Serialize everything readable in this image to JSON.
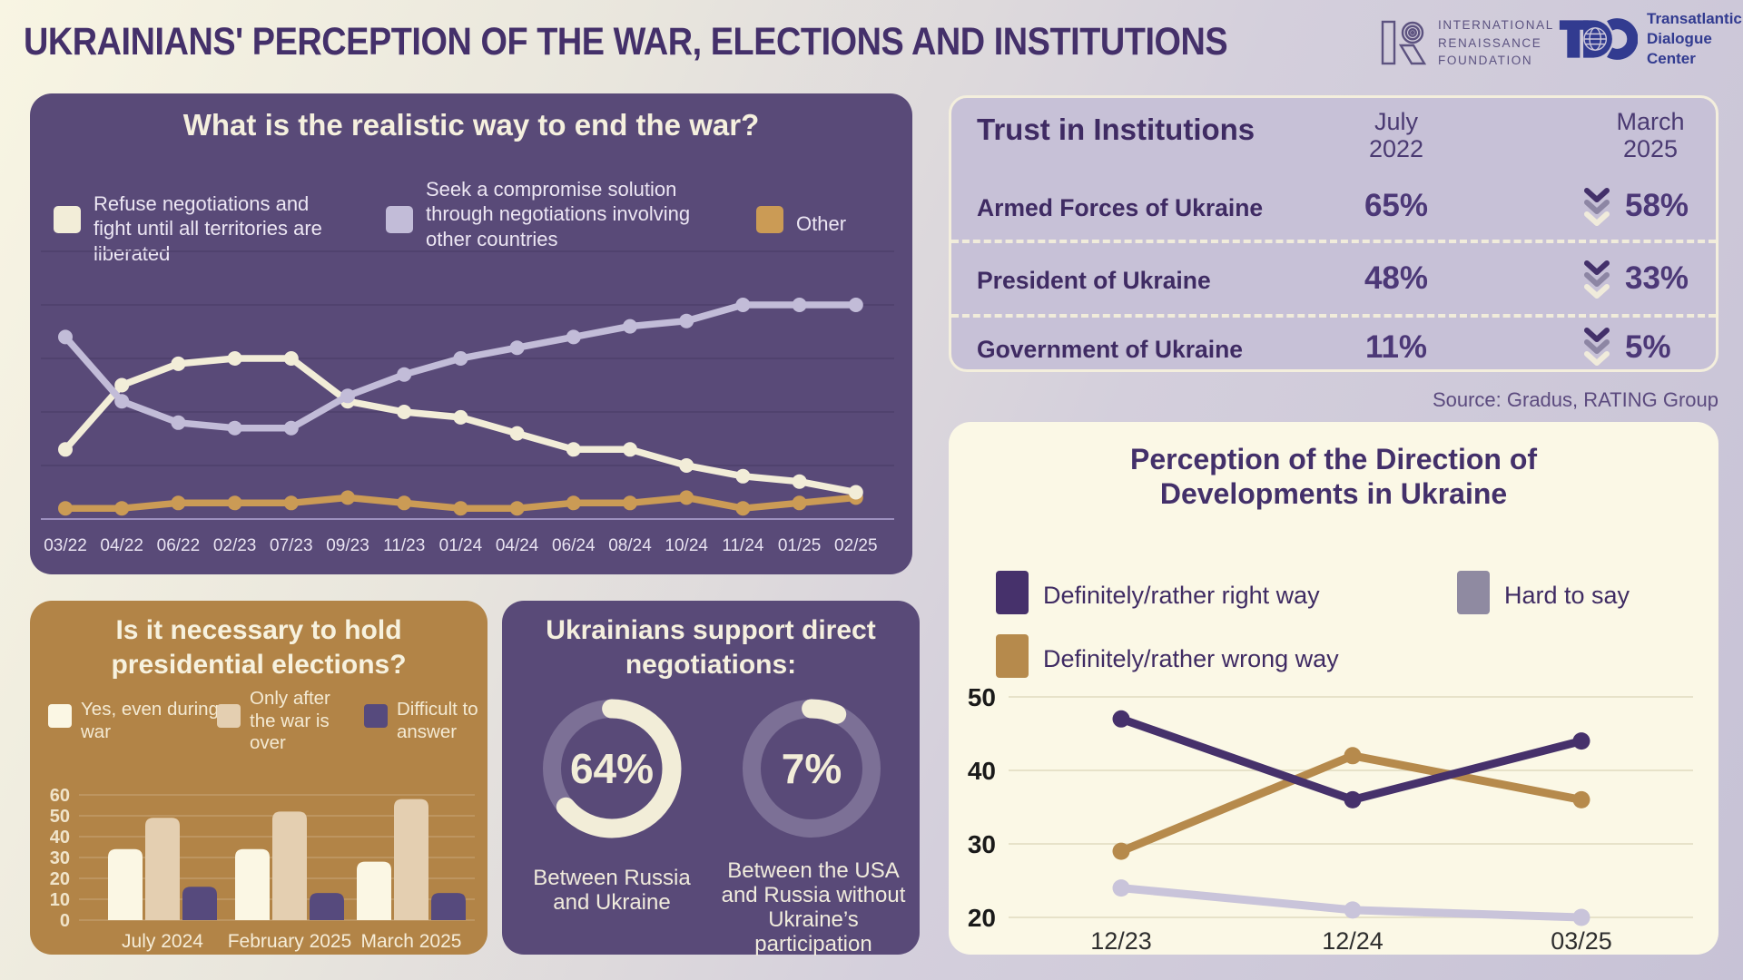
{
  "header": {
    "title": "UKRAINIANS' PERCEPTION OF THE WAR, ELECTIONS AND INSTITUTIONS",
    "irf_logo_lines": [
      "INTERNATIONAL",
      "RENAISSANCE",
      "FOUNDATION"
    ],
    "tdc_logo_lines": [
      "Transatlantic",
      "Dialogue",
      "Center"
    ]
  },
  "source_note": "Source: Gradus, RATING Group",
  "palette": {
    "purple_card": "#594a78",
    "tan_card": "#b28447",
    "cream_card": "#fbf8e6",
    "lavender_panel": "#c7c1d7",
    "heading_text": "#44306a",
    "cream_text": "#f5f0de",
    "logo_navy": "#323b90"
  },
  "chart_data": [
    {
      "id": "end_war",
      "type": "line",
      "title": "What is the realistic way to end the war?",
      "x": [
        "03/22",
        "04/22",
        "06/22",
        "02/23",
        "07/23",
        "09/23",
        "11/23",
        "01/24",
        "04/24",
        "06/24",
        "08/24",
        "10/24",
        "11/24",
        "01/25",
        "02/25"
      ],
      "series": [
        {
          "name": "Refuse negotiations and fight until all territories are liberated",
          "color": "#f2edd8",
          "values": [
            13,
            25,
            29,
            30,
            30,
            22,
            20,
            19,
            16,
            13,
            13,
            10,
            8,
            7,
            5
          ]
        },
        {
          "name": "Seek a compromise solution through negotiations involving other countries",
          "color": "#c2bcd8",
          "values": [
            34,
            22,
            18,
            17,
            17,
            23,
            27,
            30,
            32,
            34,
            36,
            37,
            40,
            40,
            40
          ]
        },
        {
          "name": "Other",
          "color": "#cb9b55",
          "values": [
            2,
            2,
            3,
            3,
            3,
            4,
            3,
            2,
            2,
            3,
            3,
            4,
            2,
            3,
            4
          ]
        }
      ],
      "ylim": [
        0,
        50
      ],
      "grid": true,
      "legend_position": "top"
    },
    {
      "id": "trust_in_institutions",
      "type": "table",
      "title": "Trust in Institutions",
      "col_headers": [
        [
          "July",
          "2022"
        ],
        [
          "March",
          "2025"
        ]
      ],
      "rows": [
        {
          "name": "Armed Forces of Ukraine",
          "july": "65%",
          "march": "58%",
          "trend": "down"
        },
        {
          "name": "President of Ukraine",
          "july": "48%",
          "march": "33%",
          "trend": "down"
        },
        {
          "name": "Government of Ukraine",
          "july": "11%",
          "march": "5%",
          "trend": "down"
        }
      ]
    },
    {
      "id": "direct_negotiations",
      "type": "pie",
      "title": "Ukrainians support direct negotiations:",
      "arc_color": "#f2edd8",
      "track_color": "#7c7096",
      "donuts": [
        {
          "value": 64,
          "display": "64%",
          "label": "Between Russia and Ukraine"
        },
        {
          "value": 7,
          "display": "7%",
          "label": "Between the USA and Russia without Ukraine’s participation"
        }
      ]
    },
    {
      "id": "presidential_elections",
      "type": "bar",
      "title": "Is it necessary to hold presidential elections?",
      "categories": [
        "July 2024",
        "February 2025",
        "March 2025"
      ],
      "series": [
        {
          "name": "Yes, even during war",
          "color": "#fbf7e4",
          "values": [
            34,
            34,
            28
          ]
        },
        {
          "name": "Only after the war is over",
          "color": "#e4cfb1",
          "values": [
            49,
            52,
            58
          ]
        },
        {
          "name": "Difficult to answer",
          "color": "#564a7d",
          "values": [
            16,
            13,
            13
          ]
        }
      ],
      "y_ticks": [
        60,
        50,
        40,
        30,
        20,
        10,
        0
      ],
      "ylim": [
        0,
        60
      ],
      "grid": true
    },
    {
      "id": "direction_of_developments",
      "type": "line",
      "title": "Perception of the Direction of Developments in Ukraine",
      "x": [
        "12/23",
        "12/24",
        "03/25"
      ],
      "series": [
        {
          "name": "Definitely/rather right way",
          "color": "#46316b",
          "legend_color": "#46316b",
          "values": [
            47,
            36,
            44
          ]
        },
        {
          "name": "Hard to say",
          "color": "#c9c4da",
          "legend_color": "#8f8aa1",
          "values": [
            24,
            21,
            20
          ]
        },
        {
          "name": "Definitely/rather wrong way",
          "color": "#b68a4c",
          "legend_color": "#b68a4c",
          "values": [
            29,
            42,
            36
          ]
        }
      ],
      "y_ticks": [
        50,
        40,
        30,
        20
      ],
      "ylim": [
        18,
        52
      ],
      "grid": true,
      "legend_position": "top"
    }
  ]
}
